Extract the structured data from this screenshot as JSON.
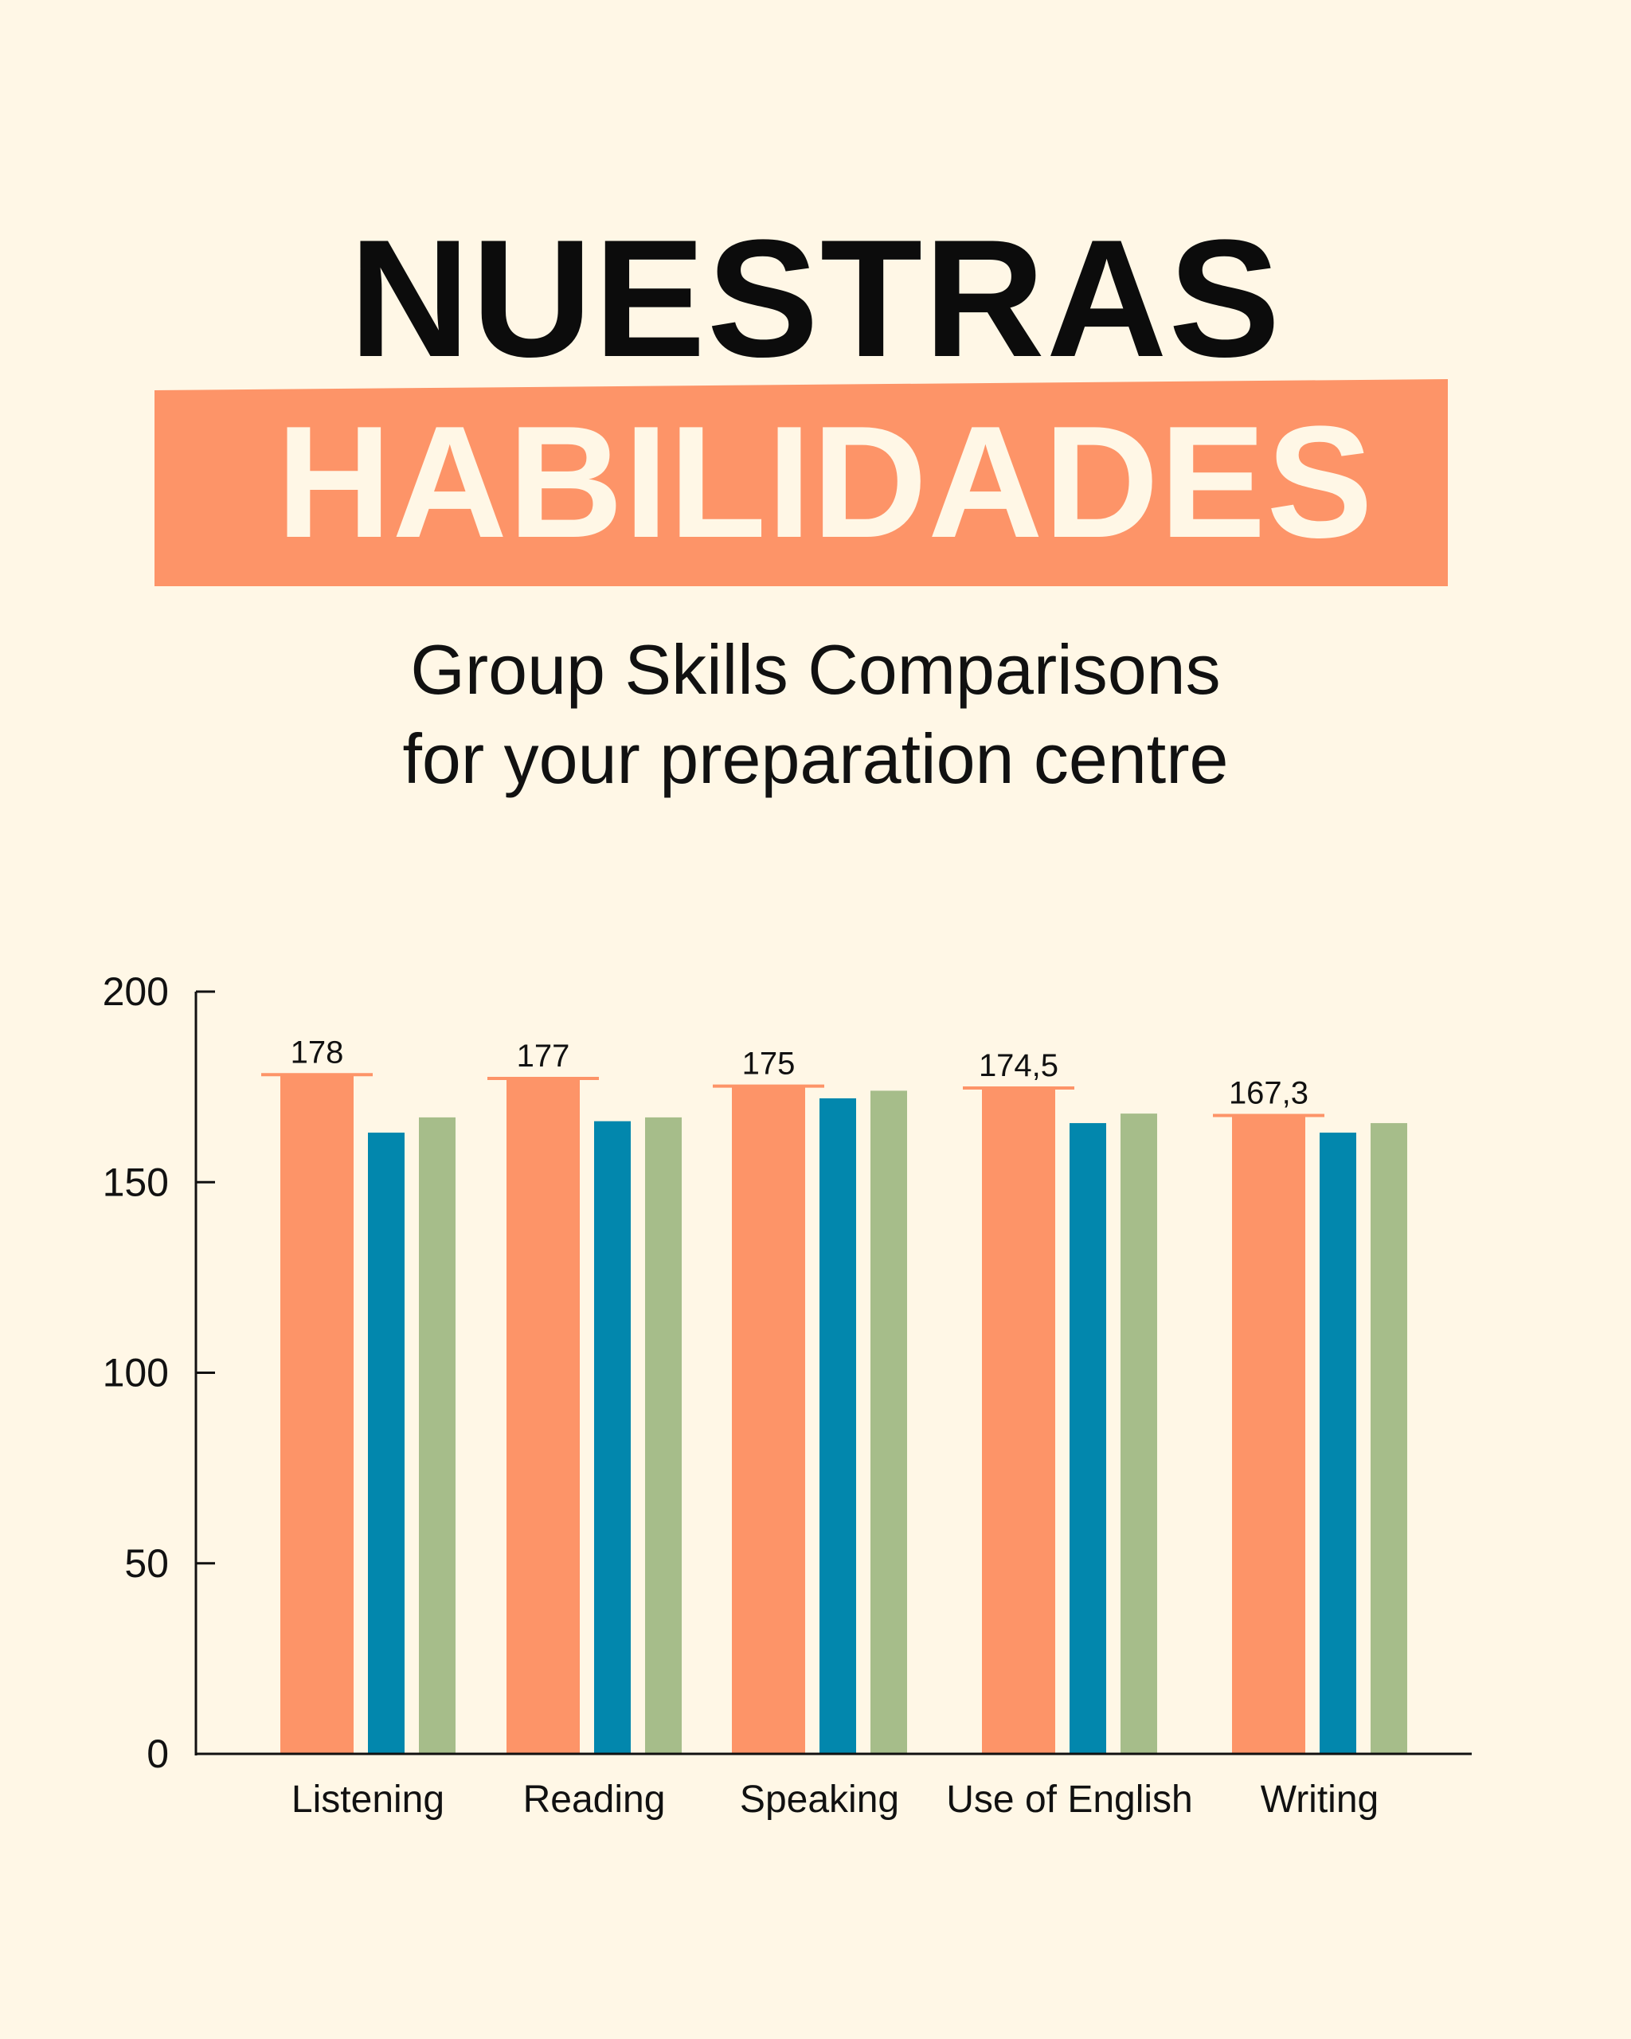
{
  "header": {
    "title": "NUESTRAS",
    "banner": "HABILIDADES",
    "subtitle_line1": "Group Skills Comparisons",
    "subtitle_line2": "for your preparation centre"
  },
  "colors": {
    "background": "#fff7e6",
    "accent": "#fd9468",
    "series": [
      "#fd9468",
      "#0287ad",
      "#a6bd8a"
    ],
    "axis": "#111111"
  },
  "chart_data": {
    "type": "bar",
    "categories": [
      "Listening",
      "Reading",
      "Speaking",
      "Use of English",
      "Writing"
    ],
    "series": [
      {
        "values": [
          178,
          177,
          175,
          174.5,
          167.3
        ],
        "labels": [
          "178",
          "177",
          "175",
          "174,5",
          "167,3"
        ]
      },
      {
        "values": [
          163,
          166,
          172,
          165.5,
          163
        ]
      },
      {
        "values": [
          167,
          167,
          174,
          168,
          165.5
        ]
      }
    ],
    "yticks": [
      "0",
      "50",
      "100",
      "150",
      "200"
    ],
    "ylim": [
      0,
      200
    ],
    "grid": false,
    "legend": false
  }
}
